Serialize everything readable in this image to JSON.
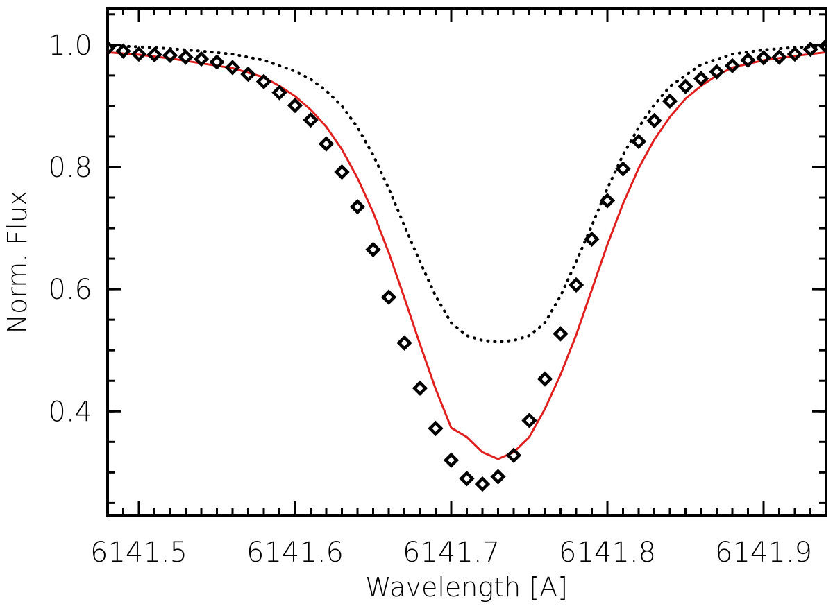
{
  "chart_data": {
    "type": "scatter",
    "title": "",
    "xlabel": "Wavelength [A]",
    "ylabel": "Norm. Flux",
    "xlim": [
      6141.48,
      6141.94
    ],
    "ylim": [
      0.23,
      1.06
    ],
    "grid": false,
    "legend": "none",
    "x_ticks": [
      6141.5,
      6141.6,
      6141.7,
      6141.8,
      6141.9
    ],
    "x_tick_labels": [
      "6141.5",
      "6141.6",
      "6141.7",
      "6141.8",
      "6141.9"
    ],
    "x_minor_step": 0.01,
    "y_ticks": [
      0.4,
      0.6,
      0.8,
      1.0
    ],
    "y_tick_labels": [
      "0.4",
      "0.6",
      "0.8",
      "1.0"
    ],
    "y_minor_step": 0.05,
    "series": [
      {
        "style": "markers",
        "marker": "diamond",
        "color": "#000000",
        "x": [
          6141.48,
          6141.49,
          6141.5,
          6141.51,
          6141.52,
          6141.53,
          6141.54,
          6141.55,
          6141.56,
          6141.57,
          6141.58,
          6141.59,
          6141.6,
          6141.61,
          6141.62,
          6141.63,
          6141.64,
          6141.65,
          6141.66,
          6141.67,
          6141.68,
          6141.69,
          6141.7,
          6141.71,
          6141.72,
          6141.73,
          6141.74,
          6141.75,
          6141.76,
          6141.77,
          6141.78,
          6141.79,
          6141.8,
          6141.81,
          6141.82,
          6141.83,
          6141.84,
          6141.85,
          6141.86,
          6141.87,
          6141.88,
          6141.89,
          6141.9,
          6141.91,
          6141.92,
          6141.93,
          6141.94
        ],
        "y": [
          0.995,
          0.99,
          0.985,
          0.984,
          0.983,
          0.98,
          0.977,
          0.972,
          0.963,
          0.952,
          0.94,
          0.922,
          0.901,
          0.877,
          0.838,
          0.792,
          0.735,
          0.665,
          0.587,
          0.512,
          0.438,
          0.372,
          0.32,
          0.29,
          0.281,
          0.293,
          0.328,
          0.385,
          0.453,
          0.527,
          0.607,
          0.682,
          0.745,
          0.797,
          0.842,
          0.876,
          0.908,
          0.932,
          0.945,
          0.956,
          0.966,
          0.975,
          0.979,
          0.98,
          0.985,
          0.993,
          0.998
        ]
      },
      {
        "style": "solid",
        "color": "#e0201e",
        "x": [
          6141.48,
          6141.5,
          6141.52,
          6141.54,
          6141.56,
          6141.58,
          6141.59,
          6141.6,
          6141.61,
          6141.62,
          6141.63,
          6141.64,
          6141.65,
          6141.66,
          6141.67,
          6141.68,
          6141.69,
          6141.7,
          6141.71,
          6141.72,
          6141.73,
          6141.74,
          6141.75,
          6141.76,
          6141.77,
          6141.78,
          6141.79,
          6141.8,
          6141.81,
          6141.82,
          6141.83,
          6141.84,
          6141.85,
          6141.86,
          6141.87,
          6141.88,
          6141.9,
          6141.92,
          6141.94
        ],
        "y": [
          0.988,
          0.984,
          0.978,
          0.97,
          0.962,
          0.947,
          0.933,
          0.916,
          0.894,
          0.866,
          0.829,
          0.782,
          0.726,
          0.66,
          0.586,
          0.51,
          0.437,
          0.373,
          0.358,
          0.333,
          0.322,
          0.333,
          0.358,
          0.404,
          0.46,
          0.525,
          0.599,
          0.673,
          0.74,
          0.798,
          0.845,
          0.882,
          0.912,
          0.933,
          0.95,
          0.963,
          0.975,
          0.982,
          0.988
        ]
      },
      {
        "style": "dotted",
        "color": "#000000",
        "x": [
          6141.48,
          6141.5,
          6141.52,
          6141.54,
          6141.56,
          6141.58,
          6141.6,
          6141.61,
          6141.62,
          6141.63,
          6141.64,
          6141.65,
          6141.66,
          6141.67,
          6141.68,
          6141.69,
          6141.7,
          6141.71,
          6141.72,
          6141.73,
          6141.74,
          6141.75,
          6141.76,
          6141.77,
          6141.78,
          6141.79,
          6141.8,
          6141.81,
          6141.82,
          6141.83,
          6141.84,
          6141.86,
          6141.88,
          6141.9,
          6141.92,
          6141.94
        ],
        "y": [
          0.999,
          0.997,
          0.994,
          0.99,
          0.985,
          0.975,
          0.957,
          0.944,
          0.925,
          0.9,
          0.865,
          0.82,
          0.765,
          0.704,
          0.645,
          0.589,
          0.545,
          0.524,
          0.516,
          0.514,
          0.516,
          0.524,
          0.545,
          0.589,
          0.645,
          0.704,
          0.765,
          0.82,
          0.865,
          0.902,
          0.932,
          0.968,
          0.985,
          0.992,
          0.996,
          0.998
        ]
      }
    ]
  }
}
